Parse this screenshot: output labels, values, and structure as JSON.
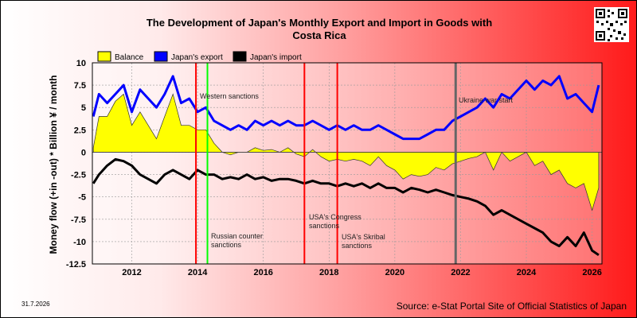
{
  "header": {
    "title_line1": "The Development of Japan's Monthly Export and Import in Goods with",
    "title_line2": "Costa Rica"
  },
  "footer": {
    "date": "31.7.2026",
    "source": "Source: e-Stat Portal Site of Official Statistics of Japan"
  },
  "colors": {
    "balance": "#ffff00",
    "export": "#0000ff",
    "import": "#000000",
    "event_red": "#ff0000",
    "event_green": "#00ff00",
    "event_gray": "#666666"
  },
  "chart_data": {
    "type": "line",
    "title": "The Development of Japan's Monthly Export and Import in Goods with Costa Rica",
    "ylabel": "Money flow (+in -out) * Billion ¥ / month",
    "xlabel": "",
    "xlim": [
      2010.8,
      2026.3
    ],
    "ylim": [
      -12.5,
      10
    ],
    "x_ticks": [
      "2012",
      "2014",
      "2016",
      "2018",
      "2020",
      "2022",
      "2024",
      "2026"
    ],
    "y_ticks": [
      "10",
      "7.5",
      "5",
      "2.5",
      "0",
      "-2.5",
      "-5",
      "-7.5",
      "-10",
      "-12.5"
    ],
    "grid": true,
    "legend": {
      "position": "top-left",
      "entries": [
        "Balance",
        "Japan's export",
        "Japan's import"
      ]
    },
    "annotations": [
      {
        "x": 2013.95,
        "label": "",
        "color": "red"
      },
      {
        "x": 2014.3,
        "label": "Russian counter sanctions",
        "color": "green"
      },
      {
        "x": 2014.05,
        "label": "Western sanctions",
        "color": "red"
      },
      {
        "x": 2017.25,
        "label": "USA's Congress sanctions",
        "color": "red"
      },
      {
        "x": 2018.25,
        "label": "USA's Skribal sanctions",
        "color": "red"
      },
      {
        "x": 2021.85,
        "label": "Ukraine war start",
        "color": "gray"
      }
    ],
    "series": [
      {
        "name": "Japan's export",
        "x": [
          2010.83,
          2011.0,
          2011.25,
          2011.5,
          2011.75,
          2012.0,
          2012.25,
          2012.5,
          2012.75,
          2013.0,
          2013.25,
          2013.5,
          2013.75,
          2014.0,
          2014.25,
          2014.5,
          2014.75,
          2015.0,
          2015.25,
          2015.5,
          2015.75,
          2016.0,
          2016.25,
          2016.5,
          2016.75,
          2017.0,
          2017.25,
          2017.5,
          2017.75,
          2018.0,
          2018.25,
          2018.5,
          2018.75,
          2019.0,
          2019.25,
          2019.5,
          2019.75,
          2020.0,
          2020.25,
          2020.5,
          2020.75,
          2021.0,
          2021.25,
          2021.5,
          2021.75,
          2022.0,
          2022.25,
          2022.5,
          2022.75,
          2023.0,
          2023.25,
          2023.5,
          2023.75,
          2024.0,
          2024.25,
          2024.5,
          2024.75,
          2025.0,
          2025.25,
          2025.5,
          2025.75,
          2026.0,
          2026.2
        ],
        "values": [
          4.0,
          6.5,
          5.5,
          6.5,
          7.5,
          4.5,
          7.0,
          6.0,
          5.0,
          6.5,
          8.5,
          5.5,
          6.0,
          4.5,
          5.0,
          3.5,
          3.0,
          2.5,
          3.0,
          2.5,
          3.5,
          3.0,
          3.5,
          3.0,
          3.5,
          3.0,
          3.0,
          3.5,
          3.0,
          2.5,
          3.0,
          2.5,
          3.0,
          2.5,
          2.5,
          3.0,
          2.5,
          2.0,
          1.5,
          1.5,
          1.5,
          2.0,
          2.5,
          2.5,
          3.5,
          4.0,
          4.5,
          5.0,
          6.0,
          5.0,
          6.5,
          6.0,
          7.0,
          8.0,
          7.0,
          8.0,
          7.5,
          8.5,
          6.0,
          6.5,
          5.5,
          4.5,
          7.5
        ]
      },
      {
        "name": "Japan's import",
        "x": [
          2010.83,
          2011.0,
          2011.25,
          2011.5,
          2011.75,
          2012.0,
          2012.25,
          2012.5,
          2012.75,
          2013.0,
          2013.25,
          2013.5,
          2013.75,
          2014.0,
          2014.25,
          2014.5,
          2014.75,
          2015.0,
          2015.25,
          2015.5,
          2015.75,
          2016.0,
          2016.25,
          2016.5,
          2016.75,
          2017.0,
          2017.25,
          2017.5,
          2017.75,
          2018.0,
          2018.25,
          2018.5,
          2018.75,
          2019.0,
          2019.25,
          2019.5,
          2019.75,
          2020.0,
          2020.25,
          2020.5,
          2020.75,
          2021.0,
          2021.25,
          2021.5,
          2021.75,
          2022.0,
          2022.25,
          2022.5,
          2022.75,
          2023.0,
          2023.25,
          2023.5,
          2023.75,
          2024.0,
          2024.25,
          2024.5,
          2024.75,
          2025.0,
          2025.25,
          2025.5,
          2025.75,
          2026.0,
          2026.2
        ],
        "values": [
          -3.5,
          -2.5,
          -1.5,
          -0.8,
          -1.0,
          -1.5,
          -2.5,
          -3.0,
          -3.5,
          -2.5,
          -2.0,
          -2.5,
          -3.0,
          -2.0,
          -2.5,
          -2.5,
          -3.0,
          -2.8,
          -3.0,
          -2.5,
          -3.0,
          -2.8,
          -3.2,
          -3.0,
          -3.0,
          -3.2,
          -3.5,
          -3.2,
          -3.5,
          -3.5,
          -3.8,
          -3.5,
          -3.8,
          -3.5,
          -4.0,
          -3.5,
          -4.0,
          -4.0,
          -4.5,
          -4.0,
          -4.2,
          -4.5,
          -4.2,
          -4.5,
          -4.8,
          -5.0,
          -5.2,
          -5.5,
          -6.0,
          -7.0,
          -6.5,
          -7.0,
          -7.5,
          -8.0,
          -8.5,
          -9.0,
          -10.0,
          -10.5,
          -9.5,
          -10.5,
          -9.0,
          -11.0,
          -11.5
        ]
      },
      {
        "name": "Balance",
        "x": [
          2010.83,
          2011.0,
          2011.25,
          2011.5,
          2011.75,
          2012.0,
          2012.25,
          2012.5,
          2012.75,
          2013.0,
          2013.25,
          2013.5,
          2013.75,
          2014.0,
          2014.25,
          2014.5,
          2014.75,
          2015.0,
          2015.25,
          2015.5,
          2015.75,
          2016.0,
          2016.25,
          2016.5,
          2016.75,
          2017.0,
          2017.25,
          2017.5,
          2017.75,
          2018.0,
          2018.25,
          2018.5,
          2018.75,
          2019.0,
          2019.25,
          2019.5,
          2019.75,
          2020.0,
          2020.25,
          2020.5,
          2020.75,
          2021.0,
          2021.25,
          2021.5,
          2021.75,
          2022.0,
          2022.25,
          2022.5,
          2022.75,
          2023.0,
          2023.25,
          2023.5,
          2023.75,
          2024.0,
          2024.25,
          2024.5,
          2024.75,
          2025.0,
          2025.25,
          2025.5,
          2025.75,
          2026.0,
          2026.2
        ],
        "values": [
          0.5,
          4.0,
          4.0,
          5.7,
          6.5,
          3.0,
          4.5,
          3.0,
          1.5,
          4.0,
          6.5,
          3.0,
          3.0,
          2.5,
          2.5,
          1.0,
          0.0,
          -0.3,
          0.0,
          0.0,
          0.5,
          0.2,
          0.3,
          0.0,
          0.5,
          -0.2,
          -0.5,
          0.3,
          -0.5,
          -1.0,
          -0.8,
          -1.0,
          -0.8,
          -1.0,
          -1.5,
          -0.5,
          -1.5,
          -2.0,
          -3.0,
          -2.5,
          -2.7,
          -2.5,
          -1.7,
          -2.0,
          -1.3,
          -1.0,
          -0.7,
          -0.5,
          0.0,
          -2.0,
          0.0,
          -1.0,
          -0.5,
          0.0,
          -1.5,
          -1.0,
          -2.5,
          -2.0,
          -3.5,
          -4.0,
          -3.5,
          -6.5,
          -4.0
        ]
      }
    ]
  }
}
